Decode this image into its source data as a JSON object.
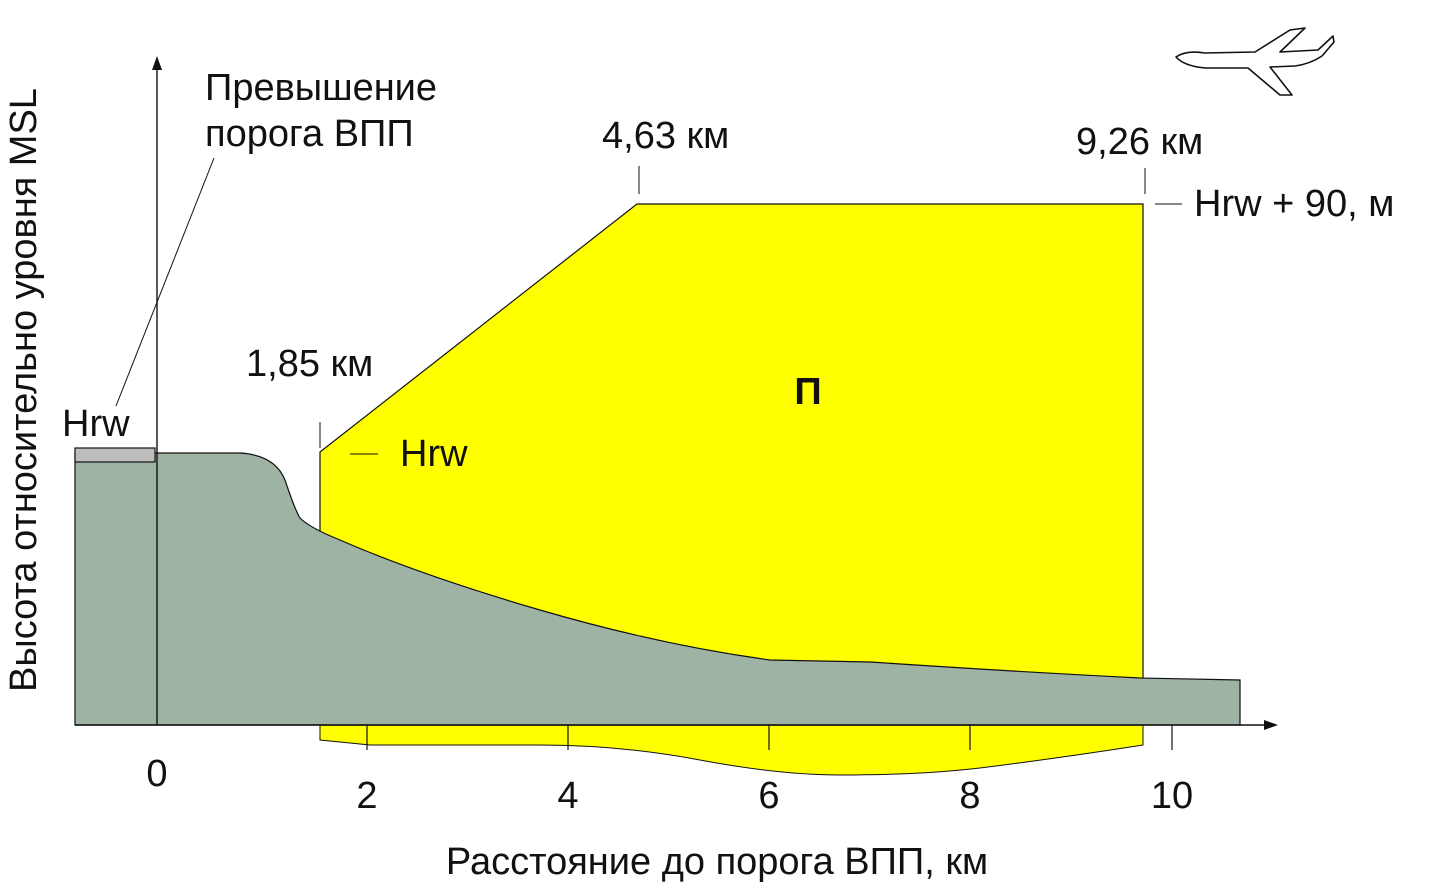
{
  "y_axis_label": "Высота относительно уровня MSL",
  "x_axis_label": "Расстояние до порога ВПП, км",
  "x_ticks": [
    "0",
    "2",
    "4",
    "6",
    "8",
    "10"
  ],
  "threshold_callout": {
    "line1": "Превышение",
    "line2": "порога ВПП"
  },
  "hrw_left_label": "Hrw",
  "zone": {
    "start_distance_label": "1,85 км",
    "start_height_label": "Hrw",
    "slope_end_distance_label": "4,63 км",
    "end_distance_label": "9,26 км",
    "top_height_label": "Hrw + 90, м",
    "zone_label": "П"
  },
  "colors": {
    "terrain": "#9fb3a4",
    "zone": "#ffff00",
    "runway": "#bdbdbd",
    "line": "#111111"
  },
  "icons": {
    "aircraft": "airplane-outline-icon"
  }
}
